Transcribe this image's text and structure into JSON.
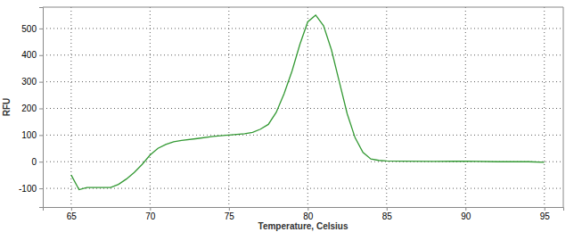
{
  "chart_data": {
    "type": "line",
    "x_label": "Temperature, Celsius",
    "y_label": "RFU",
    "x": [
      65,
      65.5,
      66,
      67,
      67.5,
      68,
      68.5,
      69,
      69.5,
      70,
      70.5,
      71,
      71.5,
      72,
      73,
      74,
      75,
      76,
      76.5,
      77,
      77.5,
      78,
      78.5,
      79,
      79.5,
      80,
      80.5,
      81,
      81.5,
      82,
      82.5,
      83,
      83.5,
      84,
      84.5,
      85,
      86,
      88,
      90,
      92,
      94,
      95
    ],
    "values": [
      -50,
      -105,
      -97,
      -97,
      -97,
      -85,
      -65,
      -40,
      -10,
      25,
      50,
      65,
      75,
      80,
      87,
      95,
      100,
      105,
      110,
      122,
      140,
      185,
      255,
      340,
      440,
      525,
      550,
      510,
      420,
      300,
      180,
      90,
      35,
      10,
      5,
      3,
      2,
      1,
      2,
      0,
      0,
      -2
    ],
    "color": "#339933",
    "xlim": [
      63.2,
      96.2
    ],
    "ylim": [
      -170,
      580
    ],
    "xticks": [
      65,
      70,
      75,
      80,
      85,
      90,
      95
    ],
    "yticks": [
      -100,
      0,
      100,
      200,
      300,
      400,
      500
    ],
    "grid": true
  }
}
